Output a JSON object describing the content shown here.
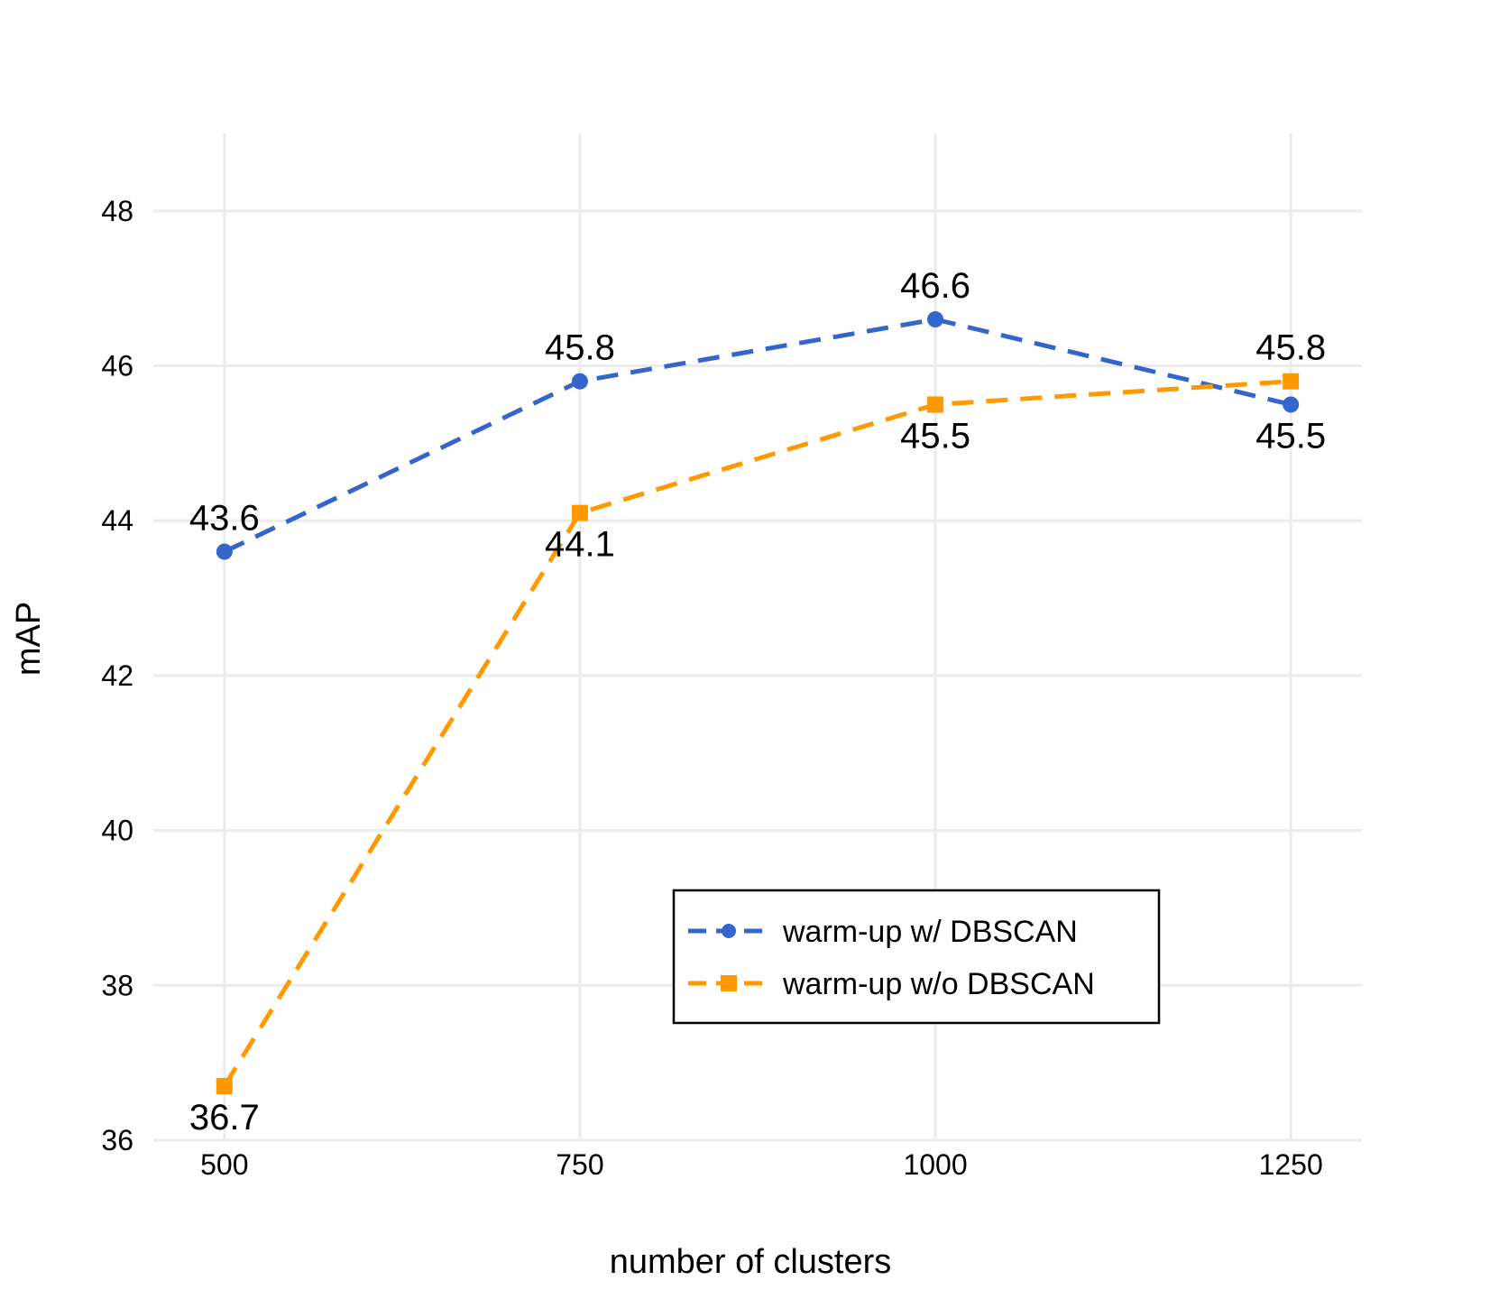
{
  "chart_data": {
    "type": "line",
    "title": "",
    "xlabel": "number of clusters",
    "ylabel": "mAP",
    "x": [
      500,
      750,
      1000,
      1250
    ],
    "xticks": [
      "500",
      "750",
      "1000",
      "1250"
    ],
    "yticks": [
      "36",
      "38",
      "40",
      "42",
      "44",
      "46",
      "48"
    ],
    "xlim": [
      450,
      1300
    ],
    "ylim": [
      36,
      49
    ],
    "grid": true,
    "legend_position": "bottom-right",
    "series": [
      {
        "name": "warm-up w/ DBSCAN",
        "values": [
          43.6,
          45.8,
          46.6,
          45.5
        ],
        "labels": [
          "43.6",
          "45.8",
          "46.6",
          "45.5"
        ],
        "label_side": [
          "above",
          "above",
          "above",
          "below"
        ],
        "color": "#3465cc",
        "marker": "circle",
        "line_style": "dashed"
      },
      {
        "name": "warm-up w/o DBSCAN",
        "values": [
          36.7,
          44.1,
          45.5,
          45.8
        ],
        "labels": [
          "36.7",
          "44.1",
          "45.5",
          "45.8"
        ],
        "label_side": [
          "below",
          "below",
          "below",
          "above"
        ],
        "color": "#ff9900",
        "marker": "square",
        "line_style": "dashed"
      }
    ]
  }
}
